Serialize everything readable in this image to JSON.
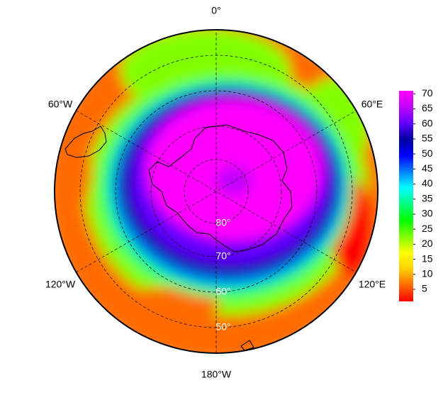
{
  "map": {
    "longitude_labels": [
      "0°",
      "60°E",
      "120°E",
      "180°W",
      "120°W",
      "60°W"
    ],
    "latitude_labels": [
      "80°",
      "70°",
      "60°",
      "50°"
    ]
  },
  "colorbar": {
    "range": [
      1,
      71
    ],
    "ticks": [
      5,
      10,
      15,
      20,
      25,
      30,
      35,
      40,
      45,
      50,
      55,
      60,
      65,
      70
    ],
    "colors": [
      "#ff0000",
      "#ff6a00",
      "#ffd000",
      "#ffff00",
      "#80ff00",
      "#00ff00",
      "#00ff80",
      "#00ffff",
      "#0080ff",
      "#0000ff",
      "#0000a0",
      "#6000ff",
      "#c000ff",
      "#ff00ff"
    ]
  }
}
